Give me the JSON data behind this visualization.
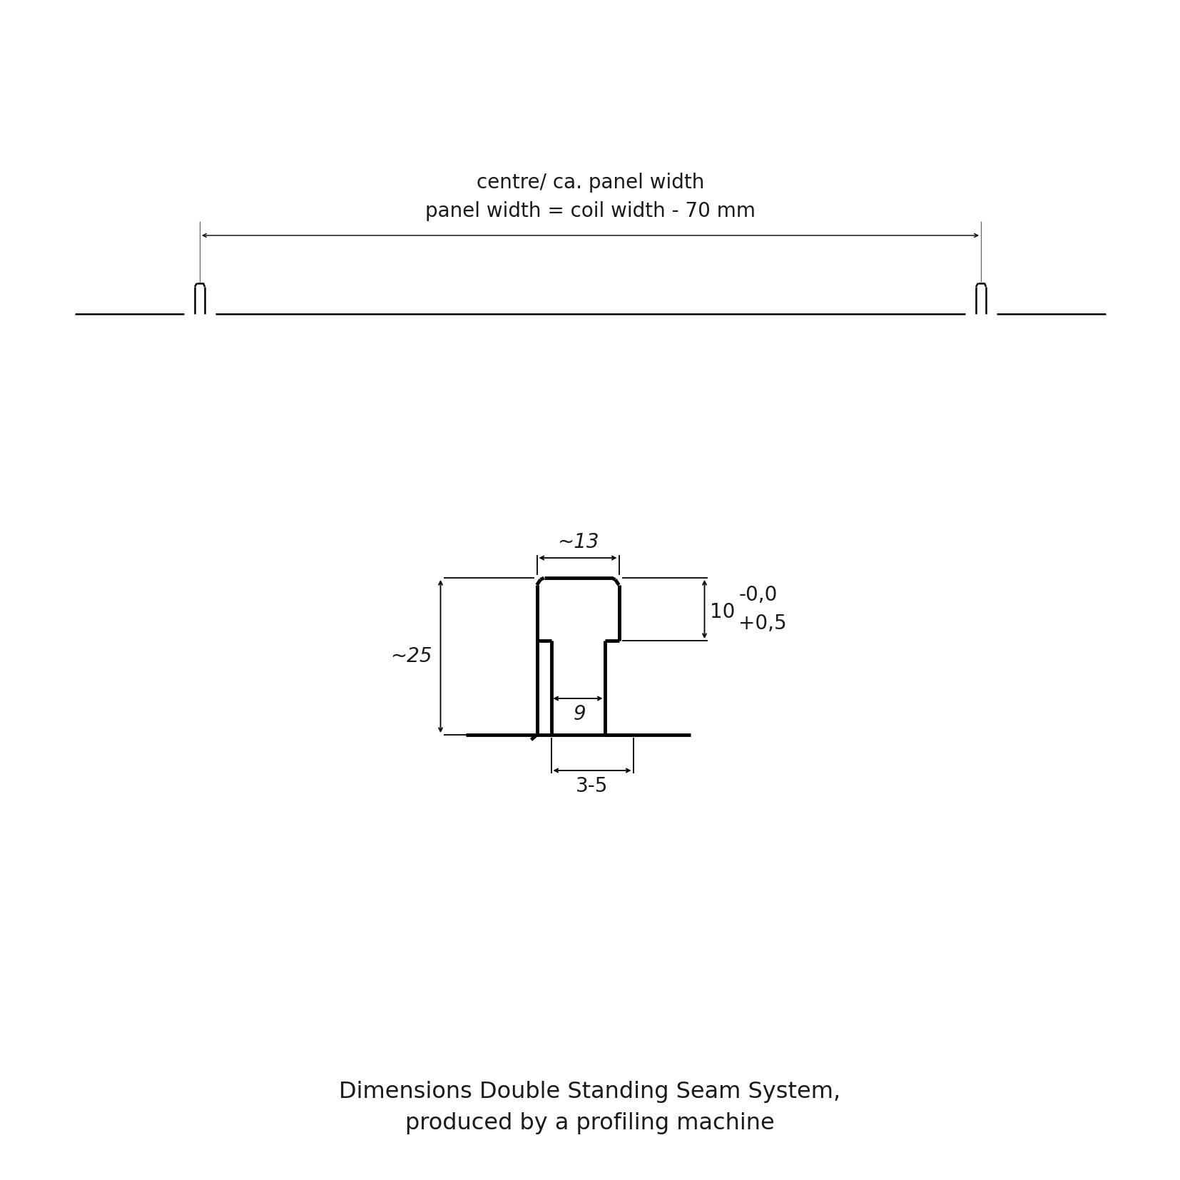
{
  "bg_color": "#ffffff",
  "line_color": "#000000",
  "text_color": "#1a1a1a",
  "title_line1": "Dimensions Double Standing Seam System,",
  "title_line2": "produced by a profiling machine",
  "top_label1": "centre/ ca. panel width",
  "top_label2": "panel width = coil width - 70 mm",
  "dim_13": "~13",
  "dim_25": "~25",
  "dim_10": "10",
  "dim_tol_upper": "-0,0",
  "dim_tol_lower": "+0,5",
  "dim_9": "9",
  "dim_35": "3-5",
  "font_size_main": 20,
  "font_size_title": 23,
  "font_size_dim": 20,
  "font_size_small_seam": 14
}
